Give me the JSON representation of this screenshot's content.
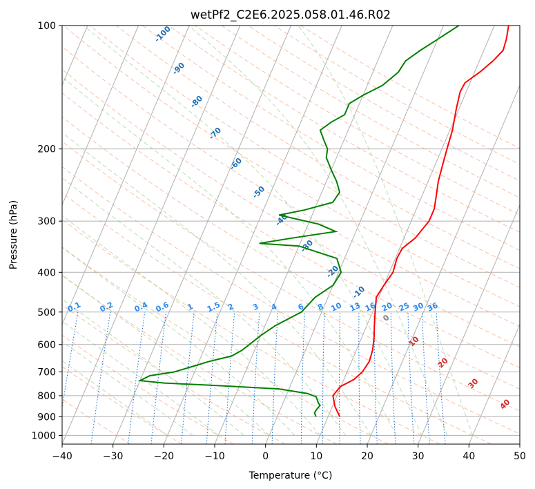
{
  "chart_data": {
    "type": "line",
    "title": "wetPf2_C2E6.2025.058.01.46.R02",
    "xlabel": "Temperature (°C)",
    "ylabel": "Pressure (hPa)",
    "xlim": [
      -40,
      50
    ],
    "ylim": [
      1050,
      100
    ],
    "y_scale": "log",
    "x_ticks": [
      "−40",
      "−30",
      "−20",
      "−10",
      "0",
      "10",
      "20",
      "30",
      "40",
      "50"
    ],
    "x_tick_values": [
      -40,
      -30,
      -20,
      -10,
      0,
      10,
      20,
      30,
      40,
      50
    ],
    "y_ticks": [
      "100",
      "200",
      "300",
      "400",
      "500",
      "600",
      "700",
      "800",
      "900",
      "1000"
    ],
    "y_tick_values": [
      100,
      200,
      300,
      400,
      500,
      600,
      700,
      800,
      900,
      1000
    ],
    "grid": true,
    "series": [
      {
        "role": "temperature",
        "color": "#ff0000",
        "points": [
          [
            12.3,
            900
          ],
          [
            10.5,
            850
          ],
          [
            9.2,
            800
          ],
          [
            9.9,
            760
          ],
          [
            12.0,
            730
          ],
          [
            13.0,
            700
          ],
          [
            13.5,
            660
          ],
          [
            13.2,
            620
          ],
          [
            12.5,
            580
          ],
          [
            11.5,
            540
          ],
          [
            10.5,
            500
          ],
          [
            9.5,
            460
          ],
          [
            10.0,
            430
          ],
          [
            10.7,
            400
          ],
          [
            10.3,
            370
          ],
          [
            10.5,
            350
          ],
          [
            12.2,
            330
          ],
          [
            13.5,
            300
          ],
          [
            13.5,
            280
          ],
          [
            12.8,
            260
          ],
          [
            12.0,
            240
          ],
          [
            11.5,
            220
          ],
          [
            11.0,
            200
          ],
          [
            10.5,
            180
          ],
          [
            9.5,
            160
          ],
          [
            8.8,
            145
          ],
          [
            9.0,
            138
          ],
          [
            11.0,
            130
          ],
          [
            12.7,
            122
          ],
          [
            13.8,
            115
          ],
          [
            13.5,
            108
          ],
          [
            12.8,
            100
          ]
        ]
      },
      {
        "role": "dewpoint",
        "color": "#008000",
        "points": [
          [
            7.6,
            900
          ],
          [
            7.0,
            880
          ],
          [
            7.2,
            860
          ],
          [
            7.5,
            845
          ],
          [
            7.0,
            835
          ],
          [
            6.5,
            820
          ],
          [
            6.0,
            805
          ],
          [
            4.0,
            790
          ],
          [
            -2.0,
            770
          ],
          [
            -15.0,
            755
          ],
          [
            -25.0,
            745
          ],
          [
            -30.0,
            735
          ],
          [
            -28.5,
            715
          ],
          [
            -24.0,
            700
          ],
          [
            -21.0,
            680
          ],
          [
            -18.0,
            660
          ],
          [
            -14.0,
            640
          ],
          [
            -12.5,
            620
          ],
          [
            -11.5,
            600
          ],
          [
            -10.0,
            570
          ],
          [
            -8.0,
            540
          ],
          [
            -4.0,
            500
          ],
          [
            -2.5,
            460
          ],
          [
            0.0,
            430
          ],
          [
            0.5,
            400
          ],
          [
            -1.5,
            370
          ],
          [
            -10.0,
            345
          ],
          [
            -18.0,
            340
          ],
          [
            -12.0,
            330
          ],
          [
            -4.0,
            318
          ],
          [
            -8.0,
            305
          ],
          [
            -16.5,
            290
          ],
          [
            -12.0,
            282
          ],
          [
            -7.0,
            270
          ],
          [
            -6.5,
            255
          ],
          [
            -8.0,
            240
          ],
          [
            -10.0,
            225
          ],
          [
            -12.0,
            210
          ],
          [
            -12.5,
            200
          ],
          [
            -14.0,
            190
          ],
          [
            -15.5,
            180
          ],
          [
            -14.0,
            172
          ],
          [
            -12.0,
            165
          ],
          [
            -12.0,
            155
          ],
          [
            -10.0,
            148
          ],
          [
            -7.0,
            140
          ],
          [
            -5.0,
            130
          ],
          [
            -4.5,
            122
          ],
          [
            -2.5,
            115
          ],
          [
            0.0,
            108
          ],
          [
            3.0,
            100
          ]
        ]
      }
    ],
    "dry_adiabat_labels": [
      "-100",
      "-90",
      "-80",
      "-70",
      "-60",
      "-50",
      "-40",
      "-30",
      "-20",
      "-10",
      "0",
      "10",
      "20",
      "30",
      "40"
    ],
    "mixing_ratio_labels": [
      "0.1",
      "0.2",
      "0.4",
      "0.6",
      "1",
      "1.5",
      "2",
      "3",
      "4",
      "6",
      "8",
      "10",
      "13",
      "16",
      "20",
      "25",
      "30",
      "36"
    ]
  }
}
